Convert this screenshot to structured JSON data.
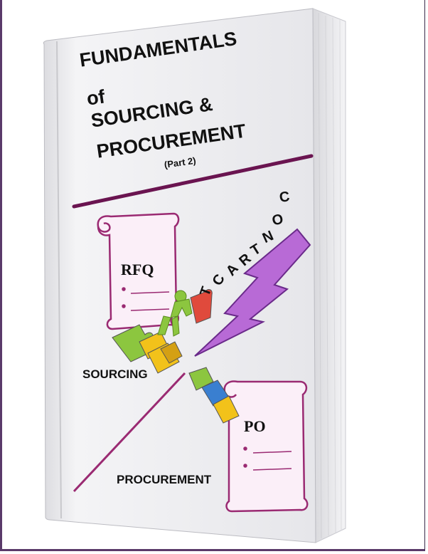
{
  "cover": {
    "title_line1": "FUNDAMENTALS",
    "title_line2": "of",
    "title_line3": "SOURCING &",
    "title_line4": "PROCUREMENT",
    "part": "(Part 2)"
  },
  "illustration": {
    "rfq_label": "RFQ",
    "po_label": "PO",
    "contract_letters": [
      "T",
      "C",
      "A",
      "R",
      "T",
      "N",
      "O",
      "C"
    ],
    "sourcing_label": "SOURCING",
    "procurement_label": "PROCUREMENT"
  },
  "colors": {
    "accent": "#7a1e5a",
    "lightning": "#b86ad6",
    "puzzle_green": "#8cc63f",
    "puzzle_yellow": "#f2c21a",
    "puzzle_red": "#e04a3c",
    "puzzle_blue": "#3a7fd0"
  }
}
